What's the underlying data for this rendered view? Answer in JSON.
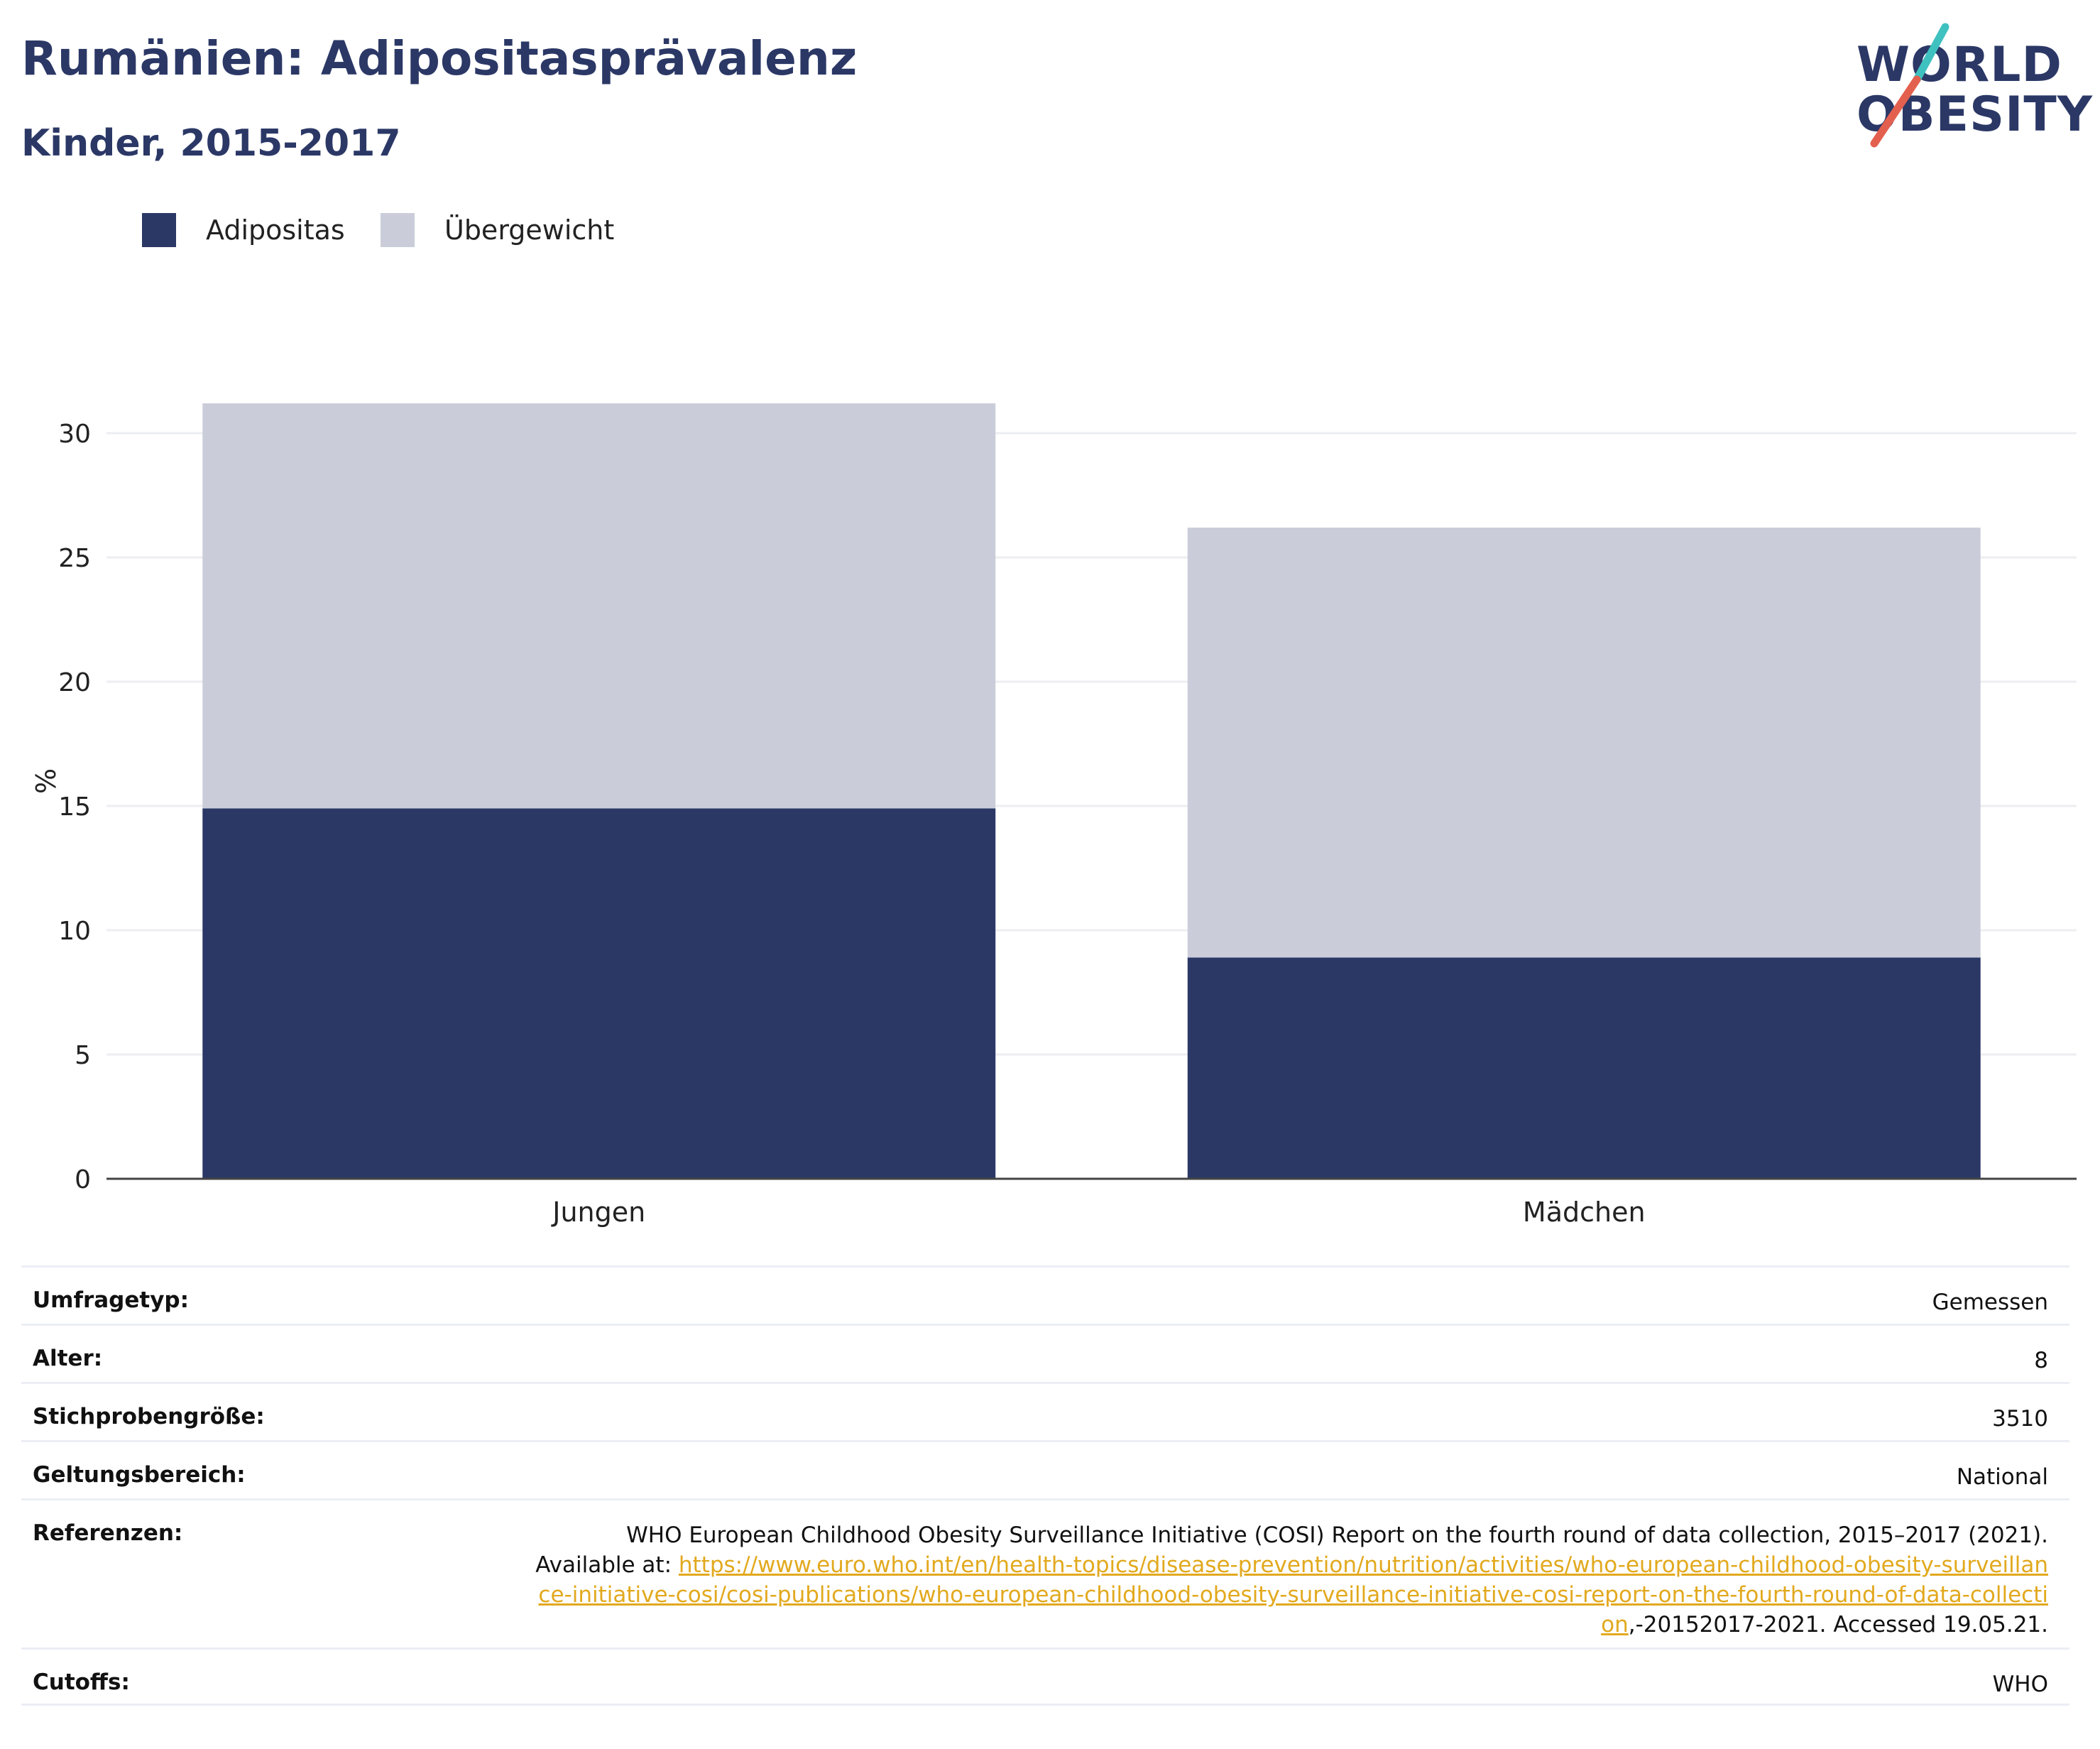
{
  "header": {
    "title": "Rumänien: Adipositasprävalenz",
    "subtitle": "Kinder, 2015-2017"
  },
  "logo": {
    "line1": "WORLD",
    "line2": "OBESITY",
    "slash_colors": [
      "#3fc1c0",
      "#e4604e"
    ]
  },
  "colors": {
    "adipositas": "#2b3866",
    "uebergewicht": "#cacdd9",
    "gridline": "#eceef2",
    "axis": "#444444",
    "link": "#e2a91e"
  },
  "legend": [
    {
      "label": "Adipositas",
      "color": "#2b3866"
    },
    {
      "label": "Übergewicht",
      "color": "#cacdd9"
    }
  ],
  "chart_data": {
    "type": "bar",
    "stacked": true,
    "categories": [
      "Jungen",
      "Mädchen"
    ],
    "series": [
      {
        "name": "Adipositas",
        "values": [
          14.9,
          8.9
        ]
      },
      {
        "name": "Übergewicht",
        "values": [
          16.3,
          17.3
        ]
      }
    ],
    "totals": [
      31.2,
      26.2
    ],
    "ylabel": "%",
    "xlabel": "",
    "ylim": [
      0,
      32
    ],
    "yticks": [
      0,
      5,
      10,
      15,
      20,
      25,
      30
    ],
    "grid": true,
    "legend_position": "top-left"
  },
  "meta": {
    "rows": [
      {
        "label": "Umfragetyp:",
        "value": "Gemessen"
      },
      {
        "label": "Alter:",
        "value": "8"
      },
      {
        "label": "Stichprobengröße:",
        "value": "3510"
      },
      {
        "label": "Geltungsbereich:",
        "value": "National"
      },
      {
        "label": "Referenzen:",
        "value_pre": "WHO European Childhood Obesity Surveillance Initiative (COSI) Report on the fourth round of data collection, 2015–2017 (2021). Available at: ",
        "link": "https://www.euro.who.int/en/health-topics/disease-prevention/nutrition/activities/who-european-childhood-obesity-surveillance-initiative-cosi/cosi-publications/who-european-childhood-obesity-surveillance-initiative-cosi-report-on-the-fourth-round-of-data-collection",
        "value_post": ",-20152017-2021. Accessed 19.05.21."
      },
      {
        "label": "Cutoffs:",
        "value": "WHO"
      }
    ]
  }
}
